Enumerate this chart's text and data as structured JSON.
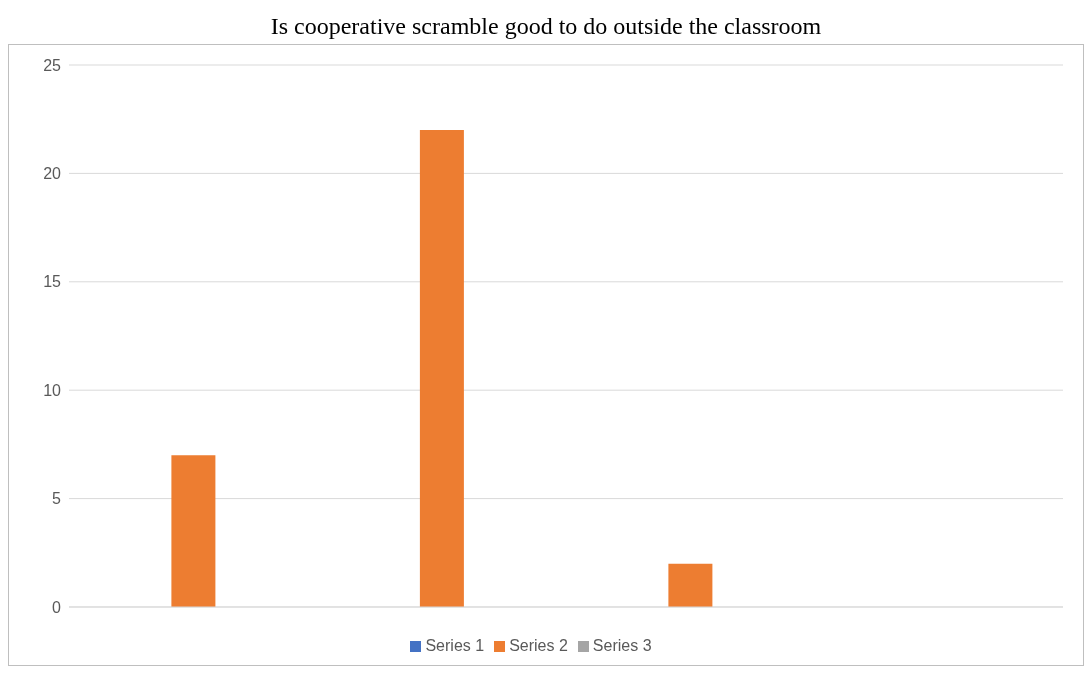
{
  "chart_data": {
    "type": "bar",
    "title": "Is cooperative scramble good to do outside the classroom",
    "categories": [
      null,
      null,
      null,
      null
    ],
    "series": [
      {
        "name": "Series 1",
        "color": "#4472c4",
        "values": [
          null,
          null,
          null,
          null
        ]
      },
      {
        "name": "Series 2",
        "color": "#ed7d31",
        "values": [
          7,
          22,
          2,
          null
        ]
      },
      {
        "name": "Series 3",
        "color": "#a5a5a5",
        "values": [
          null,
          null,
          null,
          null
        ]
      }
    ],
    "ylim": [
      0,
      25
    ],
    "yticks": [
      0,
      5,
      10,
      15,
      20,
      25
    ],
    "grid": "y",
    "legend": "bottom"
  }
}
